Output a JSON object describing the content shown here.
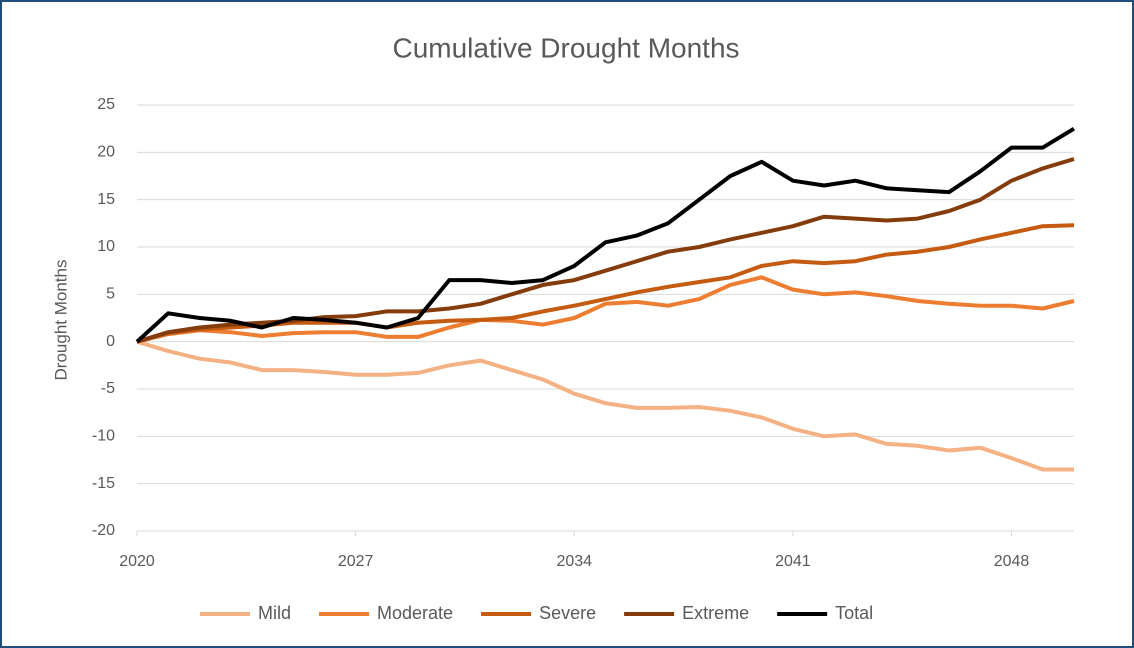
{
  "chart_data": {
    "type": "line",
    "title": "Cumulative Drought Months",
    "y_label": "Drought Months",
    "x": [
      2020,
      2021,
      2022,
      2023,
      2024,
      2025,
      2026,
      2027,
      2028,
      2029,
      2030,
      2031,
      2032,
      2033,
      2034,
      2035,
      2036,
      2037,
      2038,
      2039,
      2040,
      2041,
      2042,
      2043,
      2044,
      2045,
      2046,
      2047,
      2048,
      2049,
      2050
    ],
    "xlim": [
      2020,
      2050
    ],
    "xticks": [
      2020,
      2027,
      2034,
      2041,
      2048
    ],
    "ylim": [
      -20,
      25
    ],
    "yticks": [
      -20,
      -15,
      -10,
      -5,
      0,
      5,
      10,
      15,
      20,
      25
    ],
    "grid": true,
    "legend": "bottom",
    "series": [
      {
        "name": "Mild",
        "color": "#f4b183",
        "values": [
          0,
          -1,
          -1.8,
          -2.2,
          -3,
          -3,
          -3.2,
          -3.5,
          -3.5,
          -3.3,
          -2.5,
          -2,
          -3,
          -4,
          -5.5,
          -6.5,
          -7,
          -7,
          -6.9,
          -7.3,
          -8,
          -9.2,
          -10,
          -9.8,
          -10.8,
          -11,
          -11.5,
          -11.2,
          -12.3,
          -13.5,
          -13.5
        ]
      },
      {
        "name": "Moderate",
        "color": "#ed7d31",
        "values": [
          0,
          0.8,
          1.2,
          1,
          0.6,
          0.9,
          1,
          1,
          0.5,
          0.5,
          1.5,
          2.3,
          2.2,
          1.8,
          2.5,
          4,
          4.2,
          3.8,
          4.5,
          6,
          6.8,
          5.5,
          5,
          5.2,
          4.8,
          4.3,
          4,
          3.8,
          3.8,
          3.5,
          4.3
        ]
      },
      {
        "name": "Severe",
        "color": "#c55a11",
        "values": [
          0,
          0.9,
          1.3,
          1.5,
          1.7,
          2,
          2,
          2,
          1.5,
          2,
          2.2,
          2.3,
          2.5,
          3.2,
          3.8,
          4.5,
          5.2,
          5.8,
          6.3,
          6.8,
          8,
          8.5,
          8.3,
          8.5,
          9.2,
          9.5,
          10,
          10.8,
          11.5,
          12.2,
          12.3
        ]
      },
      {
        "name": "Extreme",
        "color": "#843c0c",
        "values": [
          0,
          1,
          1.5,
          1.8,
          2,
          2.2,
          2.6,
          2.7,
          3.2,
          3.2,
          3.5,
          4,
          5,
          6,
          6.5,
          7.5,
          8.5,
          9.5,
          10,
          10.8,
          11.5,
          12.2,
          13.2,
          13,
          12.8,
          13,
          13.8,
          15,
          17,
          18.3,
          19.3
        ]
      },
      {
        "name": "Total",
        "color": "#000000",
        "values": [
          0,
          3,
          2.5,
          2.2,
          1.5,
          2.5,
          2.3,
          2,
          1.5,
          2.5,
          6.5,
          6.5,
          6.2,
          6.5,
          8,
          10.5,
          11.2,
          12.5,
          15,
          17.5,
          19,
          17,
          16.5,
          17,
          16.2,
          16,
          15.8,
          18,
          20.5,
          20.5,
          22.5
        ]
      }
    ]
  }
}
